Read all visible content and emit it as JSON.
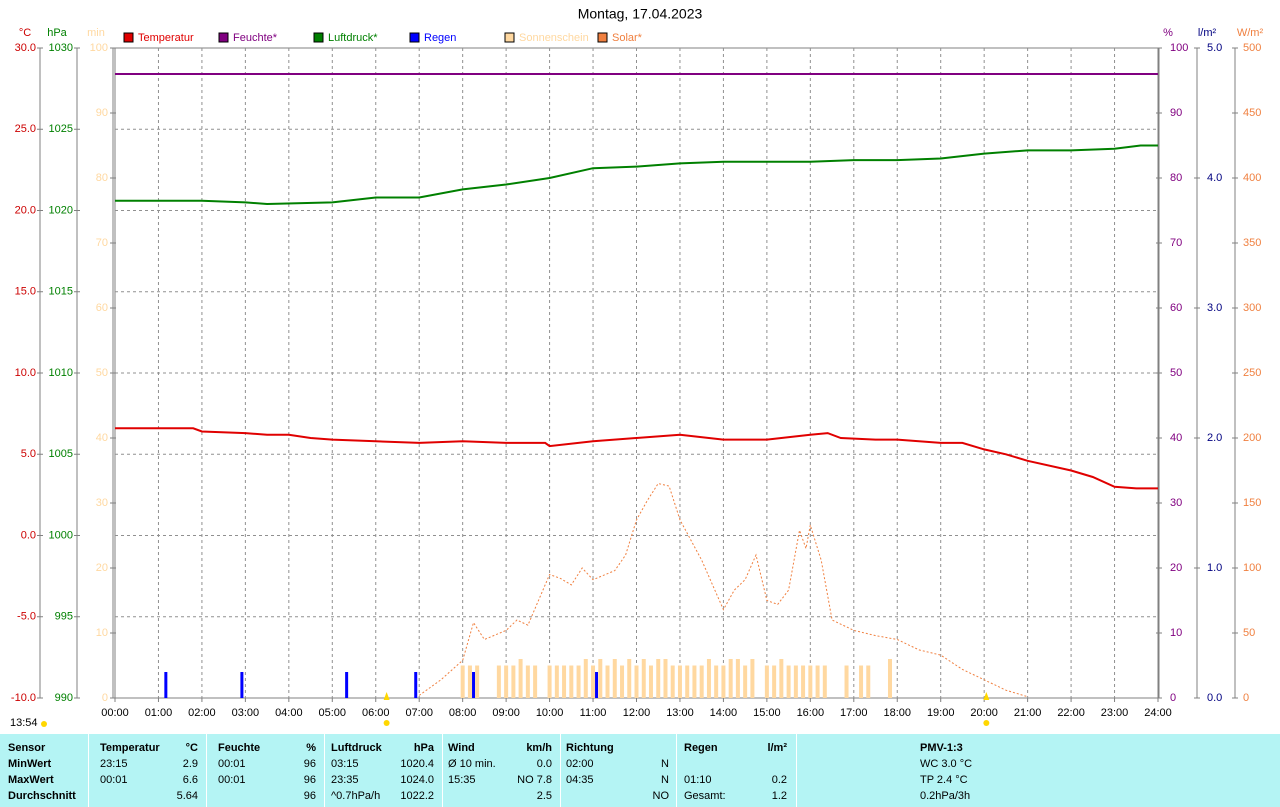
{
  "chart_data": {
    "type": "line",
    "title": "Montag, 17.04.2023",
    "xlim": [
      0,
      24
    ],
    "xticks": [
      {
        "value": 0,
        "label": "00:00"
      },
      {
        "value": 1,
        "label": "01:00"
      },
      {
        "value": 2,
        "label": "02:00"
      },
      {
        "value": 3,
        "label": "03:00"
      },
      {
        "value": 4,
        "label": "04:00"
      },
      {
        "value": 5,
        "label": "05:00"
      },
      {
        "value": 6,
        "label": "06:00"
      },
      {
        "value": 7,
        "label": "07:00"
      },
      {
        "value": 8,
        "label": "08:00"
      },
      {
        "value": 9,
        "label": "09:00"
      },
      {
        "value": 10,
        "label": "10:00"
      },
      {
        "value": 11,
        "label": "11:00"
      },
      {
        "value": 12,
        "label": "12:00"
      },
      {
        "value": 13,
        "label": "13:00"
      },
      {
        "value": 14,
        "label": "14:00"
      },
      {
        "value": 15,
        "label": "15:00"
      },
      {
        "value": 16,
        "label": "16:00"
      },
      {
        "value": 17,
        "label": "17:00"
      },
      {
        "value": 18,
        "label": "18:00"
      },
      {
        "value": 19,
        "label": "19:00"
      },
      {
        "value": 20,
        "label": "20:00"
      },
      {
        "value": 21,
        "label": "21:00"
      },
      {
        "value": 22,
        "label": "22:00"
      },
      {
        "value": 23,
        "label": "23:00"
      },
      {
        "value": 24,
        "label": "24:00"
      }
    ],
    "grid": true,
    "axes": [
      {
        "unit": "°C",
        "side": "left",
        "color": "#cc0000",
        "ylim": [
          -10,
          30
        ],
        "yticks": [
          {
            "value": -10,
            "label": "-10.0"
          },
          {
            "value": -5,
            "label": "-5.0"
          },
          {
            "value": 0,
            "label": "0.0"
          },
          {
            "value": 5,
            "label": "5.0"
          },
          {
            "value": 10,
            "label": "10.0"
          },
          {
            "value": 15,
            "label": "15.0"
          },
          {
            "value": 20,
            "label": "20.0"
          },
          {
            "value": 25,
            "label": "25.0"
          },
          {
            "value": 30,
            "label": "30.0"
          }
        ]
      },
      {
        "unit": "hPa",
        "side": "left",
        "color": "#008000",
        "ylim": [
          990,
          1030
        ],
        "yticks": [
          990,
          995,
          1000,
          1005,
          1010,
          1015,
          1020,
          1025,
          1030
        ]
      },
      {
        "unit": "min",
        "side": "left",
        "color": "#ffd8a0",
        "ylim": [
          0,
          100
        ],
        "yticks": [
          0,
          10,
          20,
          30,
          40,
          50,
          60,
          70,
          80,
          90,
          100
        ]
      },
      {
        "unit": "%",
        "side": "right",
        "color": "#800080",
        "ylim": [
          0,
          100
        ],
        "yticks": [
          0,
          10,
          20,
          30,
          40,
          50,
          60,
          70,
          80,
          90,
          100
        ]
      },
      {
        "unit": "l/m²",
        "side": "right",
        "color": "#000080",
        "ylim": [
          0,
          5
        ],
        "yticks": [
          {
            "value": 0,
            "label": "0.0"
          },
          {
            "value": 1,
            "label": "1.0"
          },
          {
            "value": 2,
            "label": "2.0"
          },
          {
            "value": 3,
            "label": "3.0"
          },
          {
            "value": 4,
            "label": "4.0"
          },
          {
            "value": 5,
            "label": "5.0"
          }
        ]
      },
      {
        "unit": "W/m²",
        "side": "right",
        "color": "#f08040",
        "ylim": [
          0,
          500
        ],
        "yticks": [
          0,
          50,
          100,
          150,
          200,
          250,
          300,
          350,
          400,
          450,
          500
        ]
      }
    ],
    "series": [
      {
        "name": "Temperatur",
        "type": "line",
        "axis": "°C",
        "color": "#e00000",
        "x": [
          0,
          1.8,
          2,
          3,
          3.5,
          4,
          4.5,
          5,
          6,
          7,
          8,
          9,
          9.9,
          10,
          11,
          12,
          13,
          14,
          15,
          16,
          16.4,
          16.7,
          17.5,
          18,
          19,
          19.5,
          20,
          20.5,
          21,
          22,
          22.5,
          23,
          23.5,
          24
        ],
        "values": [
          6.6,
          6.6,
          6.4,
          6.3,
          6.2,
          6.2,
          6.0,
          5.9,
          5.8,
          5.7,
          5.8,
          5.7,
          5.7,
          5.5,
          5.8,
          6.0,
          6.2,
          5.9,
          5.9,
          6.2,
          6.3,
          6.0,
          5.9,
          5.9,
          5.7,
          5.7,
          5.3,
          5.0,
          4.6,
          4.0,
          3.6,
          3.0,
          2.9,
          2.9
        ]
      },
      {
        "name": "Feuchte*",
        "type": "line",
        "axis": "%",
        "color": "#800080",
        "x": [
          0,
          24
        ],
        "values": [
          96,
          96
        ]
      },
      {
        "name": "Luftdruck*",
        "type": "line",
        "axis": "hPa",
        "color": "#008000",
        "x": [
          0,
          1,
          2,
          3,
          3.5,
          5,
          6,
          7,
          8,
          9,
          10,
          11,
          12,
          13,
          14,
          15,
          16,
          17,
          18,
          19,
          20,
          21,
          22,
          23,
          23.6,
          24
        ],
        "values": [
          1020.6,
          1020.6,
          1020.6,
          1020.5,
          1020.4,
          1020.5,
          1020.8,
          1020.8,
          1021.3,
          1021.6,
          1022.0,
          1022.6,
          1022.7,
          1022.9,
          1023.0,
          1023.0,
          1023.0,
          1023.1,
          1023.1,
          1023.2,
          1023.5,
          1023.7,
          1023.7,
          1023.8,
          1024.0,
          1024.0
        ]
      },
      {
        "name": "Regen",
        "type": "bar",
        "axis": "l/m²",
        "color": "#0000ff",
        "x": [
          1.17,
          2.92,
          5.33,
          6.92,
          8.25,
          11.08
        ],
        "values": [
          0.2,
          0.2,
          0.2,
          0.2,
          0.2,
          0.2
        ]
      },
      {
        "name": "Sonnenschein",
        "type": "bar",
        "axis": "min",
        "color": "#ffd8a0",
        "x": [
          8,
          8.167,
          8.333,
          8.5,
          8.667,
          8.833,
          9,
          9.167,
          9.333,
          9.5,
          9.667,
          9.833,
          10,
          10.167,
          10.333,
          10.5,
          10.667,
          10.833,
          11,
          11.167,
          11.333,
          11.5,
          11.667,
          11.833,
          12,
          12.167,
          12.333,
          12.5,
          12.667,
          12.833,
          13,
          13.167,
          13.333,
          13.5,
          13.667,
          13.833,
          14,
          14.167,
          14.333,
          14.5,
          14.667,
          14.833,
          15,
          15.167,
          15.333,
          15.5,
          15.667,
          15.833,
          16,
          16.167,
          16.333,
          16.5,
          16.667,
          16.833,
          17,
          17.167,
          17.333,
          17.5,
          17.667,
          17.833
        ],
        "values": [
          5,
          5,
          5,
          0,
          0,
          5,
          5,
          5,
          6,
          5,
          5,
          0,
          5,
          5,
          5,
          5,
          5,
          6,
          5,
          6,
          5,
          6,
          5,
          6,
          5,
          6,
          5,
          6,
          6,
          5,
          5,
          5,
          5,
          5,
          6,
          5,
          5,
          6,
          6,
          5,
          6,
          0,
          5,
          5,
          6,
          5,
          5,
          5,
          5,
          5,
          5,
          0,
          0,
          5,
          0,
          5,
          5,
          0,
          0,
          6
        ]
      },
      {
        "name": "Solar*",
        "type": "dotted",
        "axis": "W/m²",
        "color": "#f08040",
        "x": [
          7,
          7.5,
          8,
          8.25,
          8.5,
          9,
          9.25,
          9.5,
          10,
          10.25,
          10.5,
          10.75,
          11,
          11.5,
          11.75,
          12,
          12.25,
          12.5,
          12.75,
          13,
          13.5,
          14,
          14.25,
          14.5,
          14.75,
          15,
          15.25,
          15.5,
          15.75,
          15.9,
          16,
          16.25,
          16.5,
          17,
          17.5,
          18,
          18.5,
          19,
          19.5,
          20,
          20.5,
          21
        ],
        "values": [
          2,
          14,
          29,
          58,
          45,
          52,
          60,
          56,
          95,
          92,
          87,
          100,
          91,
          98,
          110,
          137,
          152,
          165,
          163,
          137,
          106,
          68,
          83,
          91,
          110,
          75,
          72,
          83,
          129,
          115,
          133,
          106,
          60,
          52,
          48,
          45,
          37,
          33,
          22,
          14,
          6,
          1
        ]
      }
    ],
    "sun_marks": [
      6.25,
      20.05
    ],
    "daylight": "13:54"
  },
  "table": {
    "header": [
      {
        "left": "Sensor"
      },
      {
        "left": "Temperatur",
        "right": "°C"
      },
      {
        "left": "Feuchte",
        "right": "%"
      },
      {
        "left": "Luftdruck",
        "right": "hPa"
      },
      {
        "left": "Wind",
        "right": "km/h"
      },
      {
        "left": "Richtung"
      },
      {
        "left": "Regen",
        "right": "l/m²"
      },
      {
        "left": "PMV-1:3"
      }
    ],
    "rows": [
      [
        {
          "left": "MinWert"
        },
        {
          "left": "23:15",
          "right": "2.9"
        },
        {
          "left": "00:01",
          "right": "96"
        },
        {
          "left": "03:15",
          "right": "1020.4"
        },
        {
          "left": "Ø 10 min.",
          "right": "0.0"
        },
        {
          "left": "02:00",
          "right": "N"
        },
        {},
        {
          "left": "WC 3.0 °C"
        }
      ],
      [
        {
          "left": "MaxWert"
        },
        {
          "left": "00:01",
          "right": "6.6"
        },
        {
          "left": "00:01",
          "right": "96"
        },
        {
          "left": "23:35",
          "right": "1024.0"
        },
        {
          "left": "15:35",
          "right": "NO 7.8"
        },
        {
          "left": "04:35",
          "right": "N"
        },
        {
          "left": "01:10",
          "right": "0.2"
        },
        {
          "left": "TP 2.4 °C"
        }
      ],
      [
        {
          "left": "Durchschnitt"
        },
        {
          "right": "5.64"
        },
        {
          "right": "96"
        },
        {
          "left": "^0.7hPa/h",
          "right": "1022.2"
        },
        {
          "right": "2.5"
        },
        {
          "right": "NO"
        },
        {
          "left": "Gesamt:",
          "right": "1.2"
        },
        {
          "left": "0.2hPa/3h"
        }
      ]
    ]
  }
}
